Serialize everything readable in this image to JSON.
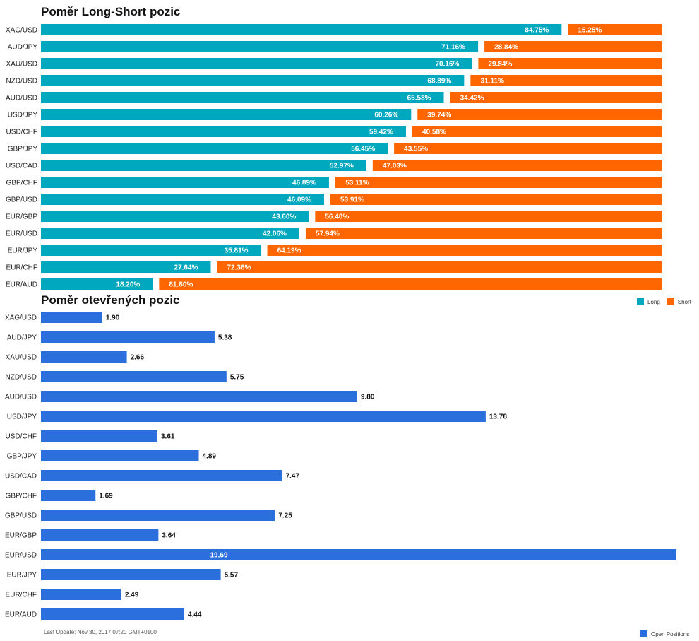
{
  "colors": {
    "long": "#00a8bf",
    "short": "#ff6600",
    "open": "#2a6fdb"
  },
  "legend1": {
    "long": "Long",
    "short": "Short"
  },
  "legend2": {
    "open": "Open Positions"
  },
  "footer": "Last Update: Nov 30, 2017 07:20 GMT+0100",
  "chart_data": [
    {
      "type": "bar",
      "stacked": true,
      "orientation": "horizontal",
      "title": "Poměr Long-Short pozic",
      "categories": [
        "XAG/USD",
        "AUD/JPY",
        "XAU/USD",
        "NZD/USD",
        "AUD/USD",
        "USD/JPY",
        "USD/CHF",
        "GBP/JPY",
        "USD/CAD",
        "GBP/CHF",
        "GBP/USD",
        "EUR/GBP",
        "EUR/USD",
        "EUR/JPY",
        "EUR/CHF",
        "EUR/AUD"
      ],
      "series": [
        {
          "name": "Long",
          "values": [
            84.75,
            71.16,
            70.16,
            68.89,
            65.58,
            60.26,
            59.42,
            56.45,
            52.97,
            46.89,
            46.09,
            43.6,
            42.06,
            35.81,
            27.64,
            18.2
          ],
          "labels": [
            "84.75%",
            "71.16%",
            "70.16%",
            "68.89%",
            "65.58%",
            "60.26%",
            "59.42%",
            "56.45%",
            "52.97%",
            "46.89%",
            "46.09%",
            "43.60%",
            "42.06%",
            "35.81%",
            "27.64%",
            "18.20%"
          ]
        },
        {
          "name": "Short",
          "values": [
            15.25,
            28.84,
            29.84,
            31.11,
            34.42,
            39.74,
            40.58,
            43.55,
            47.03,
            53.11,
            53.91,
            56.4,
            57.94,
            64.19,
            72.36,
            81.8
          ],
          "labels": [
            "15.25%",
            "28.84%",
            "29.84%",
            "31.11%",
            "34.42%",
            "39.74%",
            "40.58%",
            "43.55%",
            "47.03%",
            "53.11%",
            "53.91%",
            "56.40%",
            "57.94%",
            "64.19%",
            "72.36%",
            "81.80%"
          ]
        }
      ],
      "xlim": [
        0,
        100
      ],
      "legend": "top-right"
    },
    {
      "type": "bar",
      "orientation": "horizontal",
      "title": "Poměr otevřených pozic",
      "categories": [
        "XAG/USD",
        "AUD/JPY",
        "XAU/USD",
        "NZD/USD",
        "AUD/USD",
        "USD/JPY",
        "USD/CHF",
        "GBP/JPY",
        "USD/CAD",
        "GBP/CHF",
        "GBP/USD",
        "EUR/GBP",
        "EUR/USD",
        "EUR/JPY",
        "EUR/CHF",
        "EUR/AUD"
      ],
      "series": [
        {
          "name": "Open Positions",
          "values": [
            1.9,
            5.38,
            2.66,
            5.75,
            9.8,
            13.78,
            3.61,
            4.89,
            7.47,
            1.69,
            7.25,
            3.64,
            19.69,
            5.57,
            2.49,
            4.44
          ],
          "labels": [
            "1.90",
            "5.38",
            "2.66",
            "5.75",
            "9.80",
            "13.78",
            "3.61",
            "4.89",
            "7.47",
            "1.69",
            "7.25",
            "3.64",
            "19.69",
            "5.57",
            "2.49",
            "4.44"
          ]
        }
      ],
      "xlim": [
        0,
        19.69
      ],
      "legend": "bottom-right"
    }
  ]
}
